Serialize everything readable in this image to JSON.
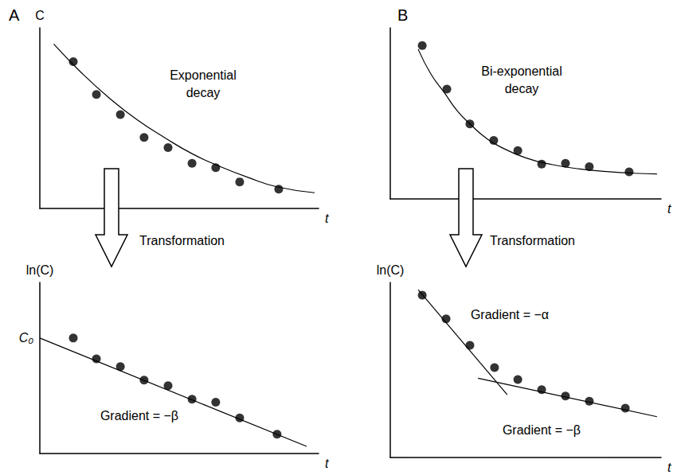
{
  "chart_data": [
    {
      "type": "scatter",
      "title": "A",
      "annotations": [
        "Exponential\ndecay"
      ],
      "x_label": "t",
      "y_label": "C",
      "xlim": [
        0,
        10
      ],
      "ylim": [
        0,
        10
      ],
      "xticks": [],
      "yticks": [],
      "tick_labels": false,
      "grid": false,
      "color": "#000000",
      "series": [
        {
          "type": "scatter",
          "marker": "circle",
          "x": [
            1.2,
            2.03,
            2.89,
            3.74,
            4.6,
            5.46,
            6.31,
            7.17,
            8.57
          ],
          "values": [
            8.13,
            6.31,
            5.2,
            3.93,
            3.37,
            2.5,
            2.26,
            1.47,
            1.07
          ]
        },
        {
          "type": "line",
          "line_style": "solid",
          "x": [
            0.5,
            1.5,
            2.5,
            3.5,
            4.5,
            5.5,
            6.5,
            7.5,
            8.5,
            9.86
          ],
          "values": [
            9.1,
            7.5,
            6.1,
            4.9,
            3.9,
            3.0,
            2.3,
            1.7,
            1.2,
            0.87
          ]
        }
      ]
    },
    {
      "type": "scatter",
      "annotations": [
        "Transformation",
        "Gradient = −β"
      ],
      "x_label": "t",
      "y_label": "ln(C)",
      "xlim": [
        0,
        10
      ],
      "ylim": [
        0,
        10
      ],
      "xticks": [],
      "yticks": [
        {
          "value": 6.75,
          "label": "C₀"
        }
      ],
      "tick_labels": "y",
      "grid": false,
      "color": "#000000",
      "series": [
        {
          "type": "scatter",
          "marker": "circle",
          "x": [
            1.2,
            2.03,
            2.89,
            3.74,
            4.6,
            5.46,
            6.31,
            7.17,
            8.51
          ],
          "values": [
            6.75,
            5.54,
            5.08,
            4.29,
            3.96,
            3.17,
            3.0,
            2.08,
            1.13
          ]
        },
        {
          "type": "line",
          "line_style": "solid",
          "x": [
            0,
            9.57
          ],
          "values": [
            6.75,
            0.42
          ]
        }
      ]
    },
    {
      "type": "scatter",
      "title": "B",
      "annotations": [
        "Bi-exponential\ndecay"
      ],
      "x_label": "t",
      "xlim": [
        0,
        10
      ],
      "ylim": [
        0,
        10
      ],
      "xticks": [],
      "yticks": [],
      "tick_labels": false,
      "grid": false,
      "color": "#000000",
      "series": [
        {
          "type": "scatter",
          "marker": "circle",
          "x": [
            1.18,
            2.09,
            2.94,
            3.82,
            4.71,
            5.59,
            6.47,
            7.35,
            8.82
          ],
          "values": [
            8.96,
            6.42,
            4.38,
            3.42,
            2.83,
            2.04,
            2.08,
            1.88,
            1.58
          ]
        },
        {
          "type": "line",
          "line_style": "solid",
          "x": [
            1.03,
            1.5,
            2.0,
            2.5,
            3.0,
            3.5,
            4.0,
            5.0,
            6.0,
            7.0,
            8.0,
            9.0,
            9.85
          ],
          "values": [
            8.75,
            7.3,
            6.2,
            5.1,
            4.3,
            3.6,
            3.1,
            2.4,
            2.0,
            1.75,
            1.6,
            1.5,
            1.46
          ]
        }
      ]
    },
    {
      "type": "scatter",
      "annotations": [
        "Transformation",
        "Gradient = −α",
        "Gradient = −β"
      ],
      "x_label": "t",
      "y_label": "ln(C)",
      "xlim": [
        0,
        10
      ],
      "ylim": [
        0,
        10
      ],
      "xticks": [],
      "yticks": [],
      "tick_labels": false,
      "grid": false,
      "color": "#000000",
      "series": [
        {
          "type": "scatter",
          "marker": "circle",
          "x": [
            1.18,
            2.06,
            2.94,
            3.85,
            4.71,
            5.59,
            6.47,
            7.35,
            8.68
          ],
          "values": [
            9.27,
            7.92,
            6.41,
            5.14,
            4.45,
            3.88,
            3.51,
            3.22,
            2.82
          ]
        },
        {
          "type": "line",
          "line_style": "solid",
          "x": [
            1.03,
            4.32
          ],
          "values": [
            9.59,
            3.59
          ]
        },
        {
          "type": "line",
          "line_style": "solid",
          "x": [
            3.24,
            9.85
          ],
          "values": [
            4.53,
            2.33
          ]
        }
      ]
    }
  ]
}
